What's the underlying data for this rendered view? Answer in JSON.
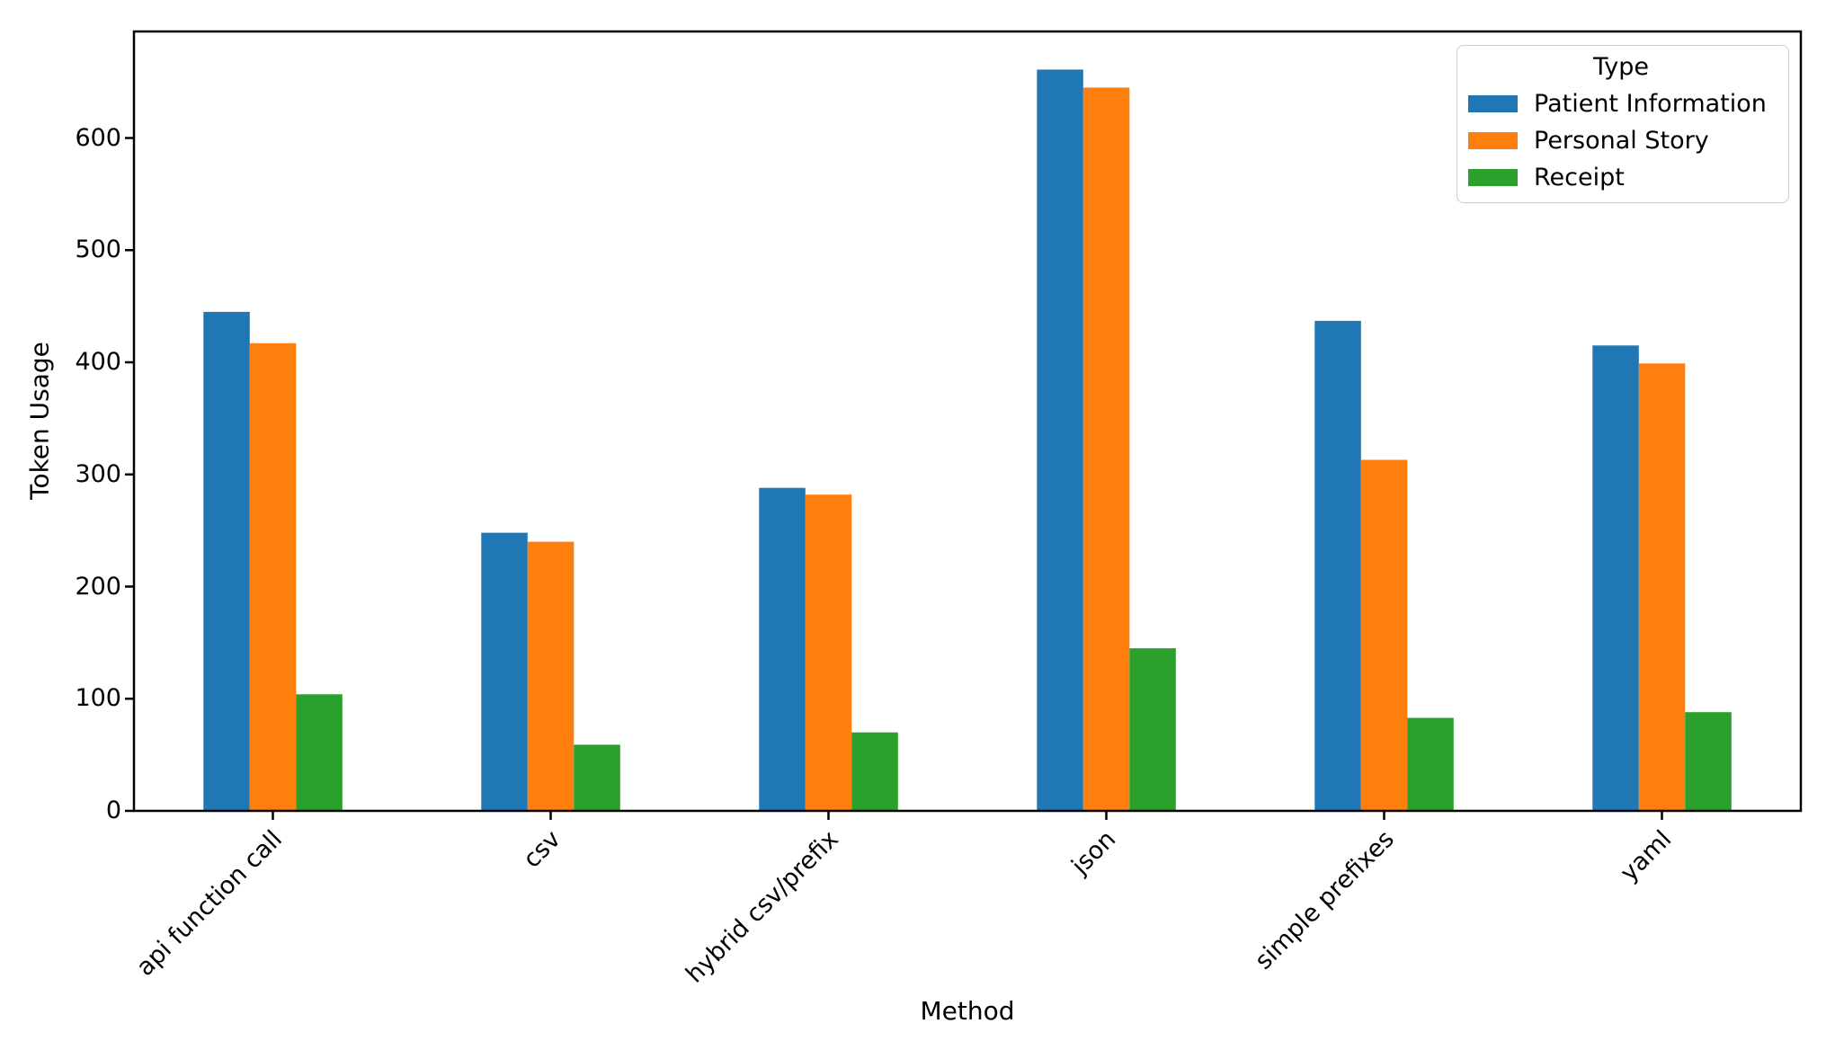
{
  "chart_data": {
    "type": "bar",
    "title": "",
    "xlabel": "Method",
    "ylabel": "Token Usage",
    "categories": [
      "api function call",
      "csv",
      "hybrid csv/prefix",
      "json",
      "simple prefixes",
      "yaml"
    ],
    "series": [
      {
        "name": "Patient Information",
        "color": "#1f77b4",
        "values": [
          445,
          248,
          288,
          661,
          437,
          415
        ]
      },
      {
        "name": "Personal Story",
        "color": "#ff7f0e",
        "values": [
          417,
          240,
          282,
          645,
          313,
          399
        ]
      },
      {
        "name": "Receipt",
        "color": "#2ca02c",
        "values": [
          104,
          59,
          70,
          145,
          83,
          88
        ]
      }
    ],
    "ylim": [
      0,
      695
    ],
    "yticks": [
      0,
      100,
      200,
      300,
      400,
      500,
      600
    ],
    "legend": {
      "title": "Type",
      "position": "upper right"
    },
    "grid": false,
    "bar_group_width_fraction": 0.5,
    "x_tick_rotation_deg": 45
  },
  "colors": {
    "axis": "#000000",
    "background": "#ffffff",
    "legend_border": "#cccccc",
    "text": "#000000"
  }
}
